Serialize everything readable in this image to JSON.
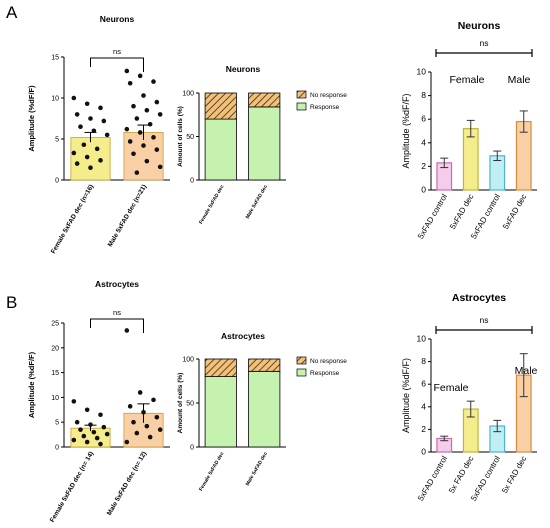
{
  "panels": {
    "A": {
      "letter": "A",
      "scatter": {
        "type": "bar",
        "title": "Neurons",
        "ylabel": "Amplitude (%dF/F)",
        "ylim": [
          0,
          15
        ],
        "yticks": [
          0,
          5,
          10,
          15
        ],
        "categories": [
          "Female 5xFAD dec (n=16)",
          "Male 5xFAD dec (n=21)"
        ],
        "values": [
          5.2,
          5.8
        ],
        "sem": [
          0.6,
          0.9
        ],
        "colors": [
          "#f5ec8c",
          "#f9cfa6"
        ],
        "significance": "ns",
        "points": [
          [
            10.0,
            9.3,
            8.8,
            8.0,
            7.5,
            7.2,
            6.5,
            6.0,
            5.5,
            4.3,
            3.8,
            3.3,
            2.8,
            2.4,
            2.0,
            1.5
          ],
          [
            13.3,
            12.7,
            12.0,
            11.8,
            10.3,
            9.5,
            9.0,
            8.5,
            8.0,
            7.5,
            6.8,
            6.2,
            5.8,
            5.2,
            4.7,
            4.2,
            3.7,
            3.2,
            2.3,
            1.6,
            0.9
          ]
        ]
      },
      "stacked": {
        "type": "bar",
        "title": "Neurons",
        "ylabel": "Amount of cells (%)",
        "ylim": [
          0,
          100
        ],
        "yticks": [
          0,
          50,
          100
        ],
        "categories": [
          "Female 5xFAD dec",
          "Male 5xFAD dec"
        ],
        "series": [
          {
            "name": "Response",
            "values": [
              70,
              84
            ],
            "color": "#c6f2b0"
          },
          {
            "name": "No response",
            "values": [
              30,
              16
            ],
            "color": "#f2c078"
          }
        ]
      },
      "means": {
        "type": "bar",
        "title": "Neurons",
        "ylabel": "Amplitude (%dF/F)",
        "ylim": [
          0,
          10
        ],
        "yticks": [
          0,
          2,
          4,
          6,
          8,
          10
        ],
        "categories": [
          "5xFAD control",
          "5xFAD dec",
          "5xFAD control",
          "5xFAD dec"
        ],
        "values": [
          2.3,
          5.2,
          2.9,
          5.8
        ],
        "errors": [
          0.4,
          0.7,
          0.4,
          0.9
        ],
        "fills": [
          "#f5cdea",
          "#f5ec8c",
          "#bfeef5",
          "#f9cfa6"
        ],
        "edges": [
          "#c96bb4",
          "#c0b53a",
          "#4fb3c8",
          "#d98a3e"
        ],
        "group_labels": [
          "Female",
          "Male"
        ],
        "significance": "ns"
      }
    },
    "B": {
      "letter": "B",
      "scatter": {
        "type": "bar",
        "title": "Astrocytes",
        "ylabel": "Amplitude (%dF/F)",
        "ylim": [
          0,
          25
        ],
        "yticks": [
          0,
          5,
          10,
          15,
          20,
          25
        ],
        "categories": [
          "Female 5xFAD dec (n= 14)",
          "Male 5xFAD dec (n= 12)"
        ],
        "values": [
          3.8,
          6.8
        ],
        "sem": [
          0.6,
          1.9
        ],
        "colors": [
          "#f5ec8c",
          "#f9cfa6"
        ],
        "significance": "ns",
        "points": [
          [
            9.2,
            7.5,
            6.5,
            5.0,
            4.5,
            4.0,
            3.5,
            3.0,
            2.6,
            2.2,
            1.8,
            1.4,
            1.0,
            0.6
          ],
          [
            23.5,
            11.0,
            9.5,
            8.2,
            7.0,
            6.0,
            5.0,
            4.2,
            3.5,
            2.8,
            2.0,
            1.0
          ]
        ]
      },
      "stacked": {
        "type": "bar",
        "title": "Astrocytes",
        "ylabel": "Amount of cells (%)",
        "ylim": [
          0,
          100
        ],
        "yticks": [
          0,
          50,
          100
        ],
        "categories": [
          "Female 5xFAD dec",
          "Male 5xFAD dec"
        ],
        "series": [
          {
            "name": "Response",
            "values": [
              80,
              86
            ],
            "color": "#c6f2b0"
          },
          {
            "name": "No response",
            "values": [
              20,
              14
            ],
            "color": "#f2c078"
          }
        ]
      },
      "means": {
        "type": "bar",
        "title": "Astrocytes",
        "ylabel": "Amplitude (%dF/F)",
        "ylim": [
          0,
          10
        ],
        "yticks": [
          0,
          2,
          4,
          6,
          8,
          10
        ],
        "categories": [
          "5xFAD control",
          "5x FAD dec",
          "5xFAD control",
          "5x FAD dec"
        ],
        "values": [
          1.2,
          3.8,
          2.3,
          6.8
        ],
        "errors": [
          0.2,
          0.7,
          0.5,
          1.9
        ],
        "fills": [
          "#f5cdea",
          "#f5ec8c",
          "#bfeef5",
          "#f9cfa6"
        ],
        "edges": [
          "#c96bb4",
          "#c0b53a",
          "#4fb3c8",
          "#d98a3e"
        ],
        "group_labels": [
          "Female",
          "Male"
        ],
        "significance": "ns"
      }
    }
  }
}
